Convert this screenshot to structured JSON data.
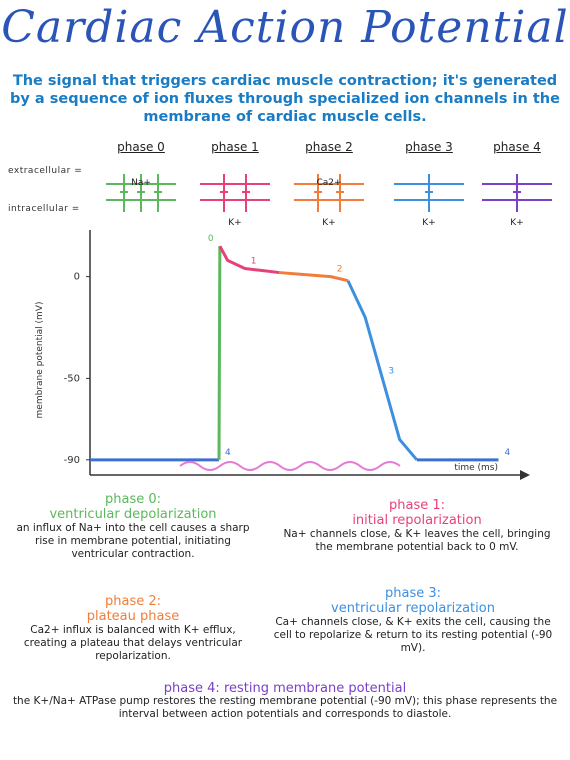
{
  "title": "Cardiac Action Potential",
  "subtitle": "The signal that triggers cardiac muscle contraction; it's generated by a sequence of ion fluxes through specialized ion channels in the membrane of cardiac muscle cells.",
  "row_labels": {
    "extracellular": "extracellular =",
    "intracellular": "intracellular ="
  },
  "phases": [
    {
      "label": "phase 0",
      "color": "#5cb85c",
      "ion_top": "Na+",
      "ion_bottom": ""
    },
    {
      "label": "phase 1",
      "color": "#e8417a",
      "ion_top": "",
      "ion_bottom": "K+"
    },
    {
      "label": "phase 2",
      "color": "#f07d3a",
      "ion_top": "Ca2+",
      "ion_bottom": "K+"
    },
    {
      "label": "phase 3",
      "color": "#3d8fe0",
      "ion_top": "",
      "ion_bottom": "K+"
    },
    {
      "label": "phase 4",
      "color": "#7b3fc8",
      "ion_top": "",
      "ion_bottom": "K+"
    }
  ],
  "chart_data": {
    "type": "line",
    "ylabel": "membrane potential (mV)",
    "xlabel": "time (ms)",
    "yticks": [
      0,
      -50,
      -90
    ],
    "ylim": [
      -95,
      18
    ],
    "series": [
      {
        "name": "4",
        "color": "#3d6fd0",
        "x": [
          0,
          30
        ],
        "y": [
          -90,
          -90
        ]
      },
      {
        "name": "0",
        "color": "#5cb85c",
        "x": [
          30,
          30.2
        ],
        "y": [
          -90,
          15
        ]
      },
      {
        "name": "1",
        "color": "#e8417a",
        "x": [
          30.2,
          32,
          36,
          40,
          44
        ],
        "y": [
          15,
          8,
          4,
          3,
          2
        ]
      },
      {
        "name": "2",
        "color": "#f07d3a",
        "x": [
          44,
          50,
          56,
          60
        ],
        "y": [
          2,
          1,
          0,
          -2
        ]
      },
      {
        "name": "3",
        "color": "#3d8fe0",
        "x": [
          60,
          64,
          68,
          72,
          76
        ],
        "y": [
          -2,
          -20,
          -50,
          -80,
          -90
        ]
      },
      {
        "name": "4",
        "color": "#3d6fd0",
        "x": [
          76,
          95
        ],
        "y": [
          -90,
          -90
        ]
      }
    ],
    "xlim": [
      0,
      100
    ]
  },
  "descriptions": {
    "phase0": {
      "head": "phase 0:",
      "sub": "ventricular depolarization",
      "body": "an influx of Na+ into the cell causes a sharp rise in membrane potential, initiating ventricular contraction."
    },
    "phase1": {
      "head": "phase 1:",
      "sub": "initial repolarization",
      "body": "Na+ channels close, & K+ leaves the cell, bringing the membrane potential back to 0 mV."
    },
    "phase2": {
      "head": "phase 2:",
      "sub": "plateau phase",
      "body": "Ca2+ influx is balanced with K+ efflux, creating a plateau that delays ventricular repolarization."
    },
    "phase3": {
      "head": "phase 3:",
      "sub": "ventricular repolarization",
      "body": "Ca+ channels close, & K+ exits the cell, causing the cell to repolarize & return to its resting potential (-90 mV)."
    },
    "phase4": {
      "head": "phase 4: resting membrane potential",
      "body": "the K+/Na+ ATPase pump restores the resting membrane potential (-90 mV); this phase represents the interval between action potentials and corresponds to diastole."
    }
  }
}
